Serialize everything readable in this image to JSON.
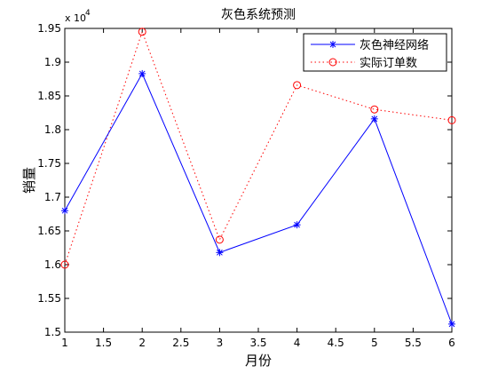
{
  "chart_data": {
    "type": "line",
    "title": "灰色系统预测",
    "xlabel": "月份",
    "ylabel": "销量",
    "exponent_base": "x 10",
    "exponent_power": "4",
    "xlim": [
      1,
      6
    ],
    "ylim": [
      1.5,
      1.95
    ],
    "x_ticks": [
      "1",
      "1.5",
      "2",
      "2.5",
      "3",
      "3.5",
      "4",
      "4.5",
      "5",
      "5.5",
      "6"
    ],
    "y_ticks": [
      "1.5",
      "1.55",
      "1.6",
      "1.65",
      "1.7",
      "1.75",
      "1.8",
      "1.85",
      "1.9",
      "1.95"
    ],
    "grid": false,
    "legend_position": "top-right",
    "series": [
      {
        "name": "灰色神经网络",
        "color": "#0000ff",
        "line_style": "solid",
        "marker": "asterisk",
        "x": [
          1,
          2,
          3,
          4,
          5,
          6
        ],
        "y": [
          1.68,
          1.883,
          1.618,
          1.659,
          1.816,
          1.512
        ]
      },
      {
        "name": "实际订单数",
        "color": "#ff0000",
        "line_style": "dotted",
        "marker": "circle",
        "x": [
          1,
          2,
          3,
          4,
          5,
          6
        ],
        "y": [
          1.6,
          1.945,
          1.637,
          1.866,
          1.83,
          1.814
        ]
      }
    ]
  }
}
